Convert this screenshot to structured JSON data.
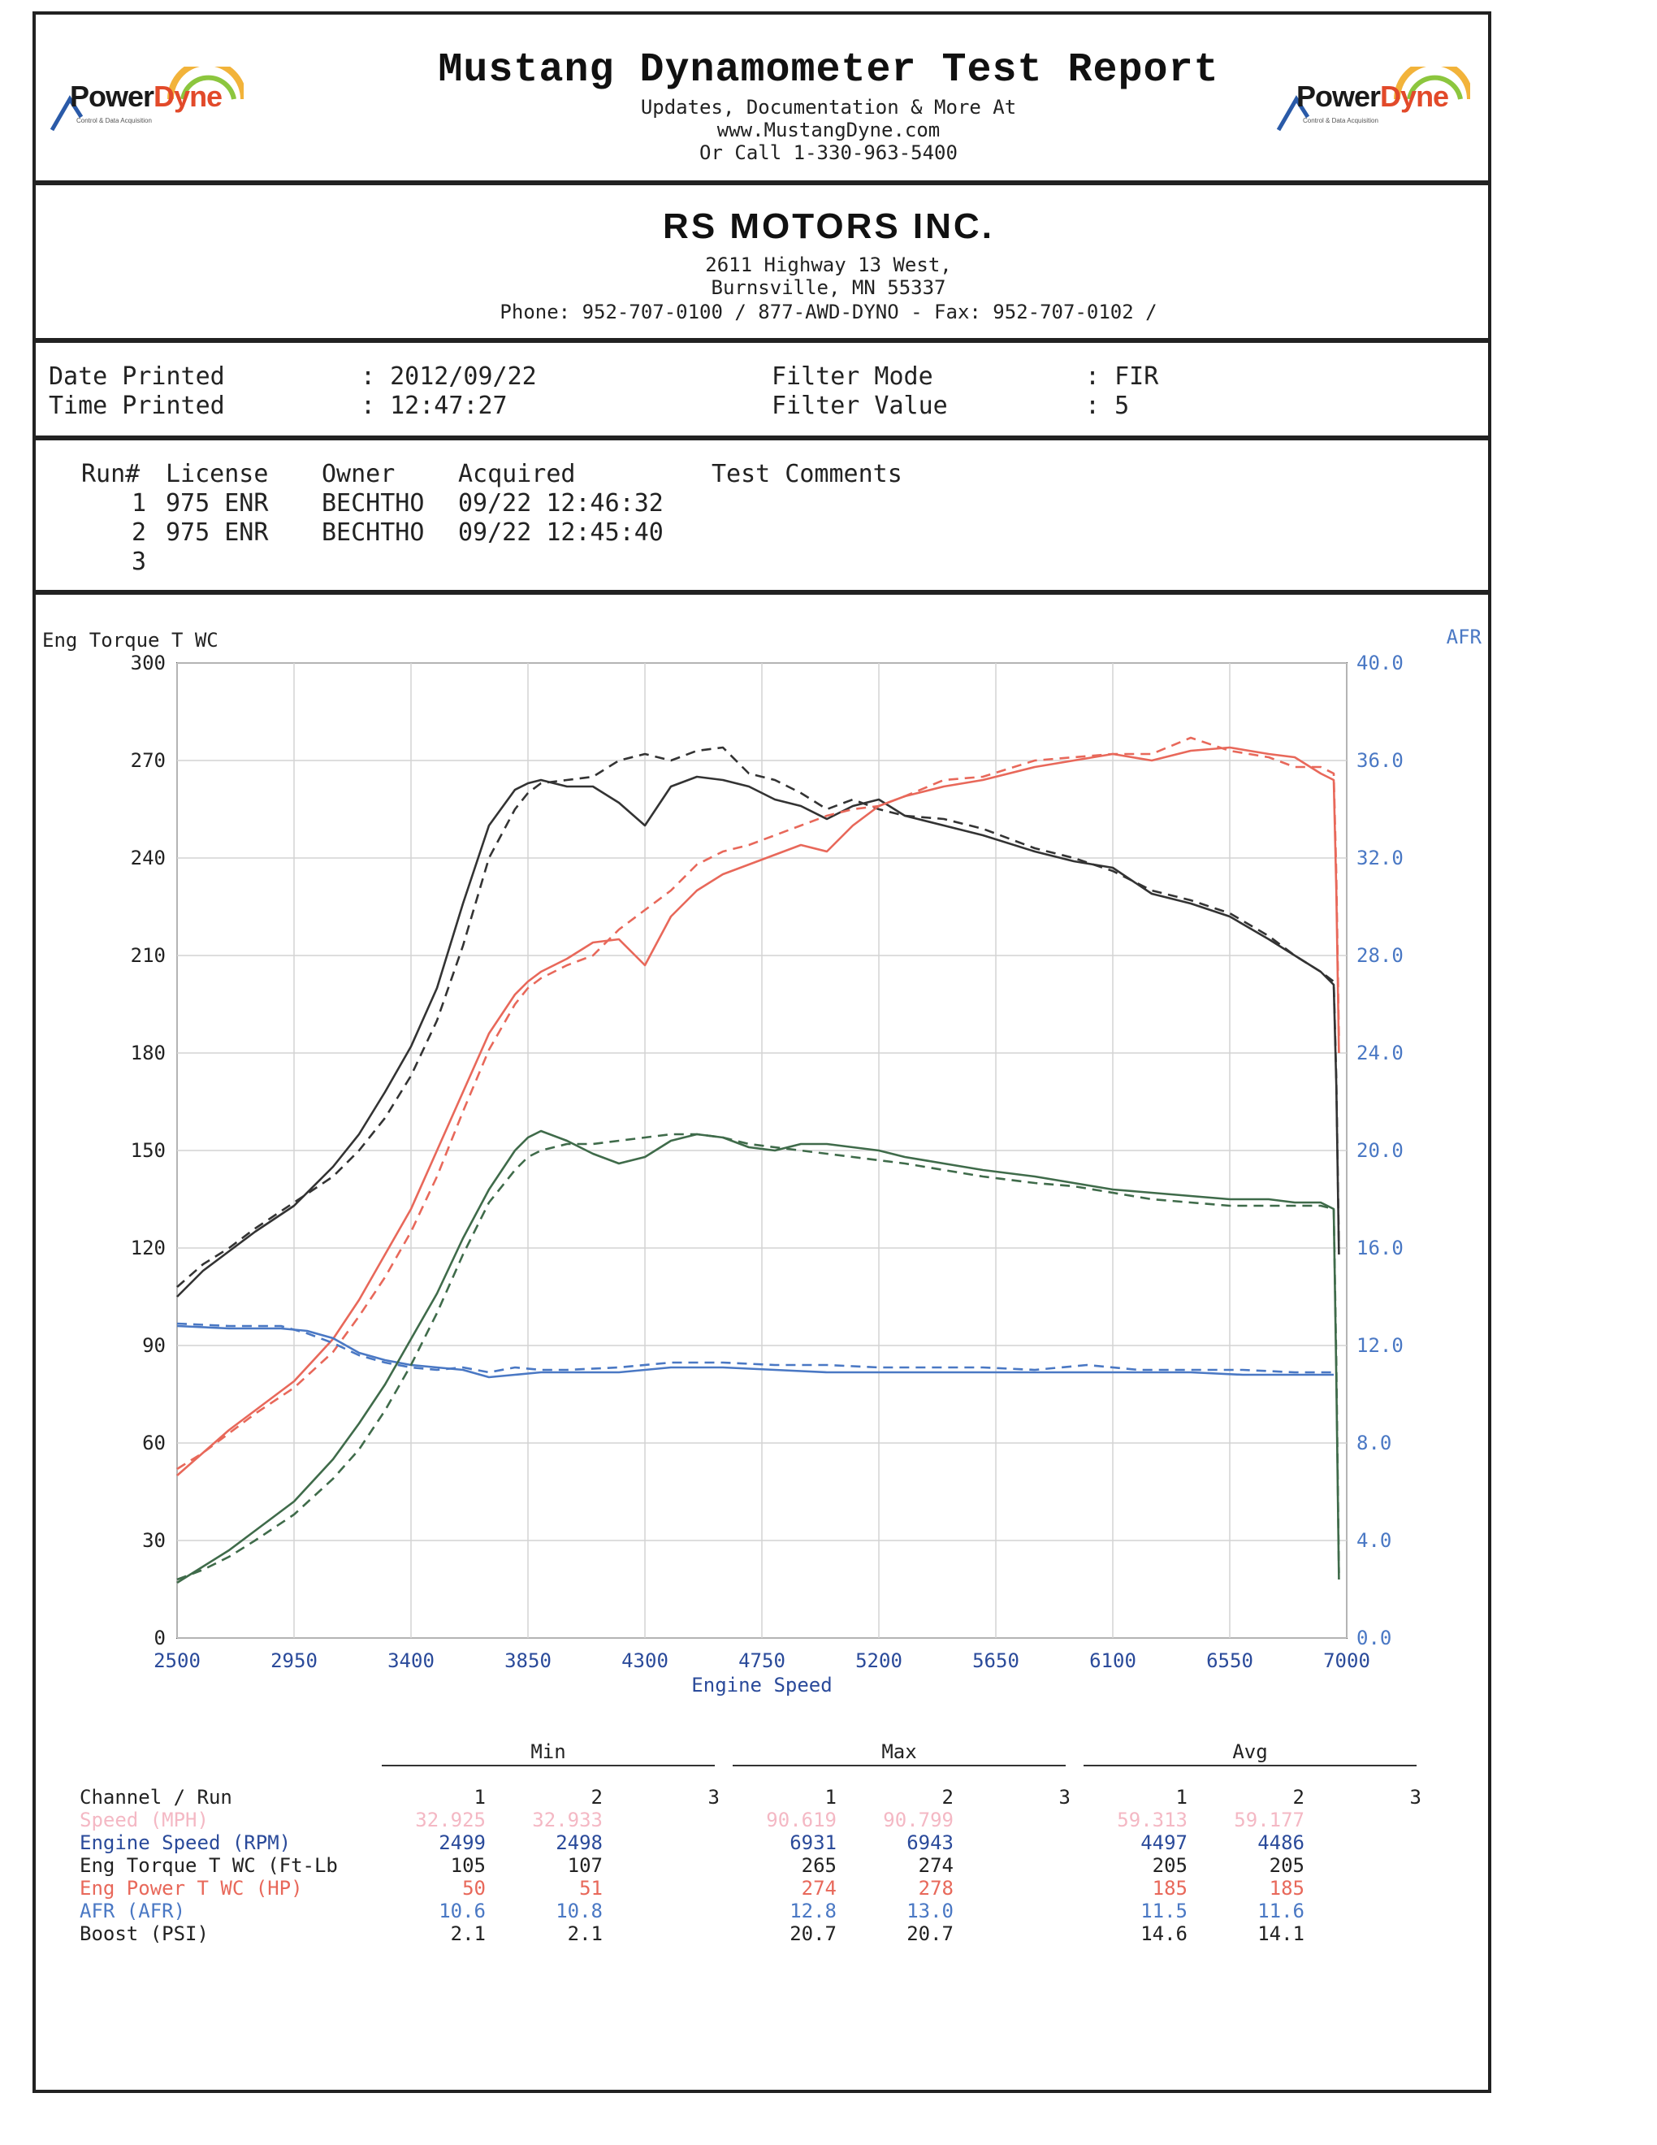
{
  "header": {
    "logo_left": {
      "part1": "Power",
      "part2": "Dyne",
      "sub": "Control & Data Acquisition"
    },
    "logo_right": {
      "part1": "Power",
      "part2": "Dyne",
      "sub": "Control & Data Acquisition"
    },
    "title": "Mustang Dynamometer Test Report",
    "line1": "Updates, Documentation & More At",
    "line2": "www.MustangDyne.com",
    "line3": "Or Call 1-330-963-5400"
  },
  "shop": {
    "name": "RS MOTORS INC.",
    "address1": "2611 Highway 13 West,",
    "address2": "Burnsville, MN  55337",
    "phone": "Phone: 952-707-0100 / 877-AWD-DYNO - Fax: 952-707-0102 /"
  },
  "info": {
    "date_label": "Date Printed",
    "date_value": ": 2012/09/22",
    "time_label": "Time Printed",
    "time_value": ": 12:47:27",
    "filter_mode_label": "Filter Mode",
    "filter_mode_value": ": FIR",
    "filter_value_label": "Filter Value",
    "filter_value_value": ": 5"
  },
  "runs": {
    "headers": [
      "Run#",
      "License",
      "Owner",
      "Acquired",
      "Test Comments"
    ],
    "rows": [
      {
        "run": "1",
        "license": "975 ENR",
        "owner": "BECHTHO",
        "acquired": "09/22 12:46:32"
      },
      {
        "run": "2",
        "license": "975 ENR",
        "owner": "BECHTHO",
        "acquired": "09/22 12:45:40"
      },
      {
        "run": "3",
        "license": "",
        "owner": "",
        "acquired": ""
      }
    ]
  },
  "chart_data": {
    "type": "line",
    "ylabel_left": "Eng Torque T WC",
    "ylabel_right": "AFR",
    "xlabel": "Engine Speed",
    "xlim": [
      2500,
      7000
    ],
    "ylim_left": [
      0,
      300
    ],
    "ylim_right": [
      0,
      40
    ],
    "x_ticks": [
      "2500",
      "2950",
      "3400",
      "3850",
      "4300",
      "4750",
      "5200",
      "5650",
      "6100",
      "6550",
      "7000"
    ],
    "y_ticks_left": [
      "0",
      "30",
      "60",
      "90",
      "120",
      "150",
      "180",
      "210",
      "240",
      "270",
      "300"
    ],
    "y_ticks_right": [
      "0.0",
      "4.0",
      "8.0",
      "12.0",
      "16.0",
      "20.0",
      "24.0",
      "28.0",
      "32.0",
      "36.0",
      "40.0"
    ],
    "grid": true,
    "colors": {
      "torque": "#333333",
      "power": "#e8685a",
      "afr": "#4a78c4",
      "boost": "#3f6b4a",
      "axis_right": "#4a78c4"
    },
    "series": [
      {
        "key": "torque",
        "run": 1,
        "style": "solid",
        "axis": "left",
        "x": [
          2500,
          2600,
          2700,
          2800,
          2950,
          3100,
          3200,
          3300,
          3400,
          3500,
          3600,
          3700,
          3800,
          3850,
          3900,
          4000,
          4100,
          4200,
          4300,
          4400,
          4500,
          4600,
          4700,
          4800,
          4900,
          5000,
          5100,
          5200,
          5300,
          5450,
          5600,
          5800,
          5950,
          6100,
          6250,
          6400,
          6550,
          6700,
          6800,
          6900,
          6950,
          6960,
          6970
        ],
        "y": [
          105,
          113,
          119,
          125,
          133,
          145,
          155,
          168,
          182,
          200,
          226,
          250,
          261,
          263,
          264,
          262,
          262,
          257,
          250,
          262,
          265,
          264,
          262,
          258,
          256,
          252,
          256,
          258,
          253,
          250,
          247,
          242,
          239,
          237,
          229,
          226,
          222,
          215,
          210,
          205,
          201,
          170,
          118
        ]
      },
      {
        "key": "torque",
        "run": 2,
        "style": "dashed",
        "axis": "left",
        "x": [
          2500,
          2600,
          2700,
          2800,
          2950,
          3100,
          3200,
          3300,
          3400,
          3500,
          3600,
          3700,
          3800,
          3850,
          3900,
          4000,
          4100,
          4200,
          4300,
          4400,
          4500,
          4600,
          4700,
          4800,
          4900,
          5000,
          5100,
          5200,
          5300,
          5450,
          5600,
          5800,
          5950,
          6100,
          6250,
          6400,
          6550,
          6700,
          6800,
          6900,
          6950,
          6960,
          6970
        ],
        "y": [
          108,
          115,
          120,
          126,
          134,
          142,
          150,
          160,
          173,
          190,
          213,
          240,
          255,
          260,
          263,
          264,
          265,
          270,
          272,
          270,
          273,
          274,
          266,
          264,
          260,
          255,
          258,
          255,
          253,
          252,
          249,
          243,
          240,
          236,
          230,
          227,
          223,
          216,
          210,
          205,
          202,
          172,
          120
        ]
      },
      {
        "key": "power",
        "run": 1,
        "style": "solid",
        "axis": "left",
        "x": [
          2500,
          2600,
          2700,
          2800,
          2950,
          3100,
          3200,
          3300,
          3400,
          3500,
          3600,
          3700,
          3800,
          3850,
          3900,
          4000,
          4100,
          4200,
          4300,
          4400,
          4500,
          4600,
          4700,
          4800,
          4900,
          5000,
          5100,
          5200,
          5300,
          5450,
          5600,
          5800,
          5950,
          6100,
          6250,
          6400,
          6550,
          6700,
          6800,
          6900,
          6950,
          6960,
          6970
        ],
        "y": [
          50,
          57,
          64,
          70,
          79,
          92,
          104,
          118,
          132,
          150,
          168,
          186,
          198,
          202,
          205,
          209,
          214,
          215,
          207,
          222,
          230,
          235,
          238,
          241,
          244,
          242,
          250,
          256,
          259,
          262,
          264,
          268,
          270,
          272,
          270,
          273,
          274,
          272,
          271,
          266,
          264,
          230,
          180
        ]
      },
      {
        "key": "power",
        "run": 2,
        "style": "dashed",
        "axis": "left",
        "x": [
          2500,
          2600,
          2700,
          2800,
          2950,
          3100,
          3200,
          3300,
          3400,
          3500,
          3600,
          3700,
          3800,
          3850,
          3900,
          4000,
          4100,
          4200,
          4300,
          4400,
          4500,
          4600,
          4700,
          4800,
          4900,
          5000,
          5100,
          5200,
          5300,
          5450,
          5600,
          5800,
          5950,
          6100,
          6250,
          6400,
          6550,
          6700,
          6800,
          6900,
          6950,
          6960,
          6970
        ],
        "y": [
          52,
          57,
          63,
          69,
          77,
          88,
          99,
          111,
          125,
          142,
          162,
          181,
          195,
          200,
          203,
          207,
          210,
          218,
          224,
          230,
          238,
          242,
          244,
          247,
          250,
          253,
          255,
          256,
          259,
          264,
          265,
          270,
          271,
          272,
          272,
          277,
          273,
          271,
          268,
          268,
          266,
          235,
          185
        ]
      },
      {
        "key": "afr",
        "run": 1,
        "style": "solid",
        "axis": "right",
        "x": [
          2500,
          2700,
          2900,
          3000,
          3100,
          3200,
          3300,
          3400,
          3500,
          3600,
          3700,
          3800,
          3900,
          4000,
          4200,
          4400,
          4600,
          4800,
          5000,
          5200,
          5400,
          5600,
          5800,
          6000,
          6200,
          6400,
          6600,
          6800,
          6950
        ],
        "y": [
          12.8,
          12.7,
          12.7,
          12.6,
          12.3,
          11.7,
          11.4,
          11.2,
          11.1,
          11.0,
          10.7,
          10.8,
          10.9,
          10.9,
          10.9,
          11.1,
          11.1,
          11.0,
          10.9,
          10.9,
          10.9,
          10.9,
          10.9,
          10.9,
          10.9,
          10.9,
          10.8,
          10.8,
          10.8
        ]
      },
      {
        "key": "afr",
        "run": 2,
        "style": "dashed",
        "axis": "right",
        "x": [
          2500,
          2700,
          2900,
          3000,
          3100,
          3200,
          3300,
          3400,
          3500,
          3600,
          3700,
          3800,
          3900,
          4000,
          4200,
          4400,
          4600,
          4800,
          5000,
          5200,
          5400,
          5600,
          5800,
          6000,
          6200,
          6400,
          6600,
          6800,
          6950
        ],
        "y": [
          12.9,
          12.8,
          12.8,
          12.5,
          12.1,
          11.6,
          11.3,
          11.1,
          11.0,
          11.1,
          10.9,
          11.1,
          11.0,
          11.0,
          11.1,
          11.3,
          11.3,
          11.2,
          11.2,
          11.1,
          11.1,
          11.1,
          11.0,
          11.2,
          11.0,
          11.0,
          11.0,
          10.9,
          10.9
        ]
      },
      {
        "key": "boost",
        "run": 1,
        "style": "solid",
        "axis": "left",
        "x": [
          2500,
          2600,
          2700,
          2800,
          2950,
          3100,
          3200,
          3300,
          3400,
          3500,
          3600,
          3700,
          3800,
          3850,
          3900,
          4000,
          4100,
          4200,
          4300,
          4400,
          4500,
          4600,
          4700,
          4800,
          4900,
          5000,
          5100,
          5200,
          5300,
          5450,
          5600,
          5800,
          5950,
          6100,
          6250,
          6400,
          6550,
          6700,
          6800,
          6900,
          6950,
          6960,
          6970
        ],
        "y": [
          17,
          22,
          27,
          33,
          42,
          55,
          66,
          78,
          92,
          106,
          123,
          138,
          150,
          154,
          156,
          153,
          149,
          146,
          148,
          153,
          155,
          154,
          151,
          150,
          152,
          152,
          151,
          150,
          148,
          146,
          144,
          142,
          140,
          138,
          137,
          136,
          135,
          135,
          134,
          134,
          132,
          80,
          18
        ]
      },
      {
        "key": "boost",
        "run": 2,
        "style": "dashed",
        "axis": "left",
        "x": [
          2500,
          2600,
          2700,
          2800,
          2950,
          3100,
          3200,
          3300,
          3400,
          3500,
          3600,
          3700,
          3800,
          3850,
          3900,
          4000,
          4100,
          4200,
          4300,
          4400,
          4500,
          4600,
          4700,
          4800,
          4900,
          5000,
          5100,
          5200,
          5300,
          5450,
          5600,
          5800,
          5950,
          6100,
          6250,
          6400,
          6550,
          6700,
          6800,
          6900,
          6950,
          6960,
          6970
        ],
        "y": [
          18,
          21,
          25,
          30,
          38,
          49,
          58,
          70,
          84,
          100,
          118,
          134,
          144,
          148,
          150,
          152,
          152,
          153,
          154,
          155,
          155,
          154,
          152,
          151,
          150,
          149,
          148,
          147,
          146,
          144,
          142,
          140,
          139,
          137,
          135,
          134,
          133,
          133,
          133,
          133,
          132,
          85,
          20
        ]
      }
    ]
  },
  "summary": {
    "groups": [
      "Min",
      "Max",
      "Avg"
    ],
    "channel_header": "Channel / Run",
    "run_cols": [
      "1",
      "2",
      "3"
    ],
    "rows": [
      {
        "name": "Speed (MPH)",
        "color": "#f4b8c4",
        "vals": [
          "32.925",
          "32.933",
          "",
          "90.619",
          "90.799",
          "",
          "59.313",
          "59.177",
          ""
        ]
      },
      {
        "name": "Engine Speed (RPM)",
        "color": "#2a4a9a",
        "vals": [
          "2499",
          "2498",
          "",
          "6931",
          "6943",
          "",
          "4497",
          "4486",
          ""
        ]
      },
      {
        "name": "Eng Torque T WC (Ft-Lb",
        "color": "#222222",
        "vals": [
          "105",
          "107",
          "",
          "265",
          "274",
          "",
          "205",
          "205",
          ""
        ]
      },
      {
        "name": "Eng Power T WC (HP)",
        "color": "#e8685a",
        "vals": [
          "50",
          "51",
          "",
          "274",
          "278",
          "",
          "185",
          "185",
          ""
        ]
      },
      {
        "name": "AFR (AFR)",
        "color": "#4a78c4",
        "vals": [
          "10.6",
          "10.8",
          "",
          "12.8",
          "13.0",
          "",
          "11.5",
          "11.6",
          ""
        ]
      },
      {
        "name": "Boost (PSI)",
        "color": "#222222",
        "vals": [
          "2.1",
          "2.1",
          "",
          "20.7",
          "20.7",
          "",
          "14.6",
          "14.1",
          ""
        ]
      }
    ]
  }
}
